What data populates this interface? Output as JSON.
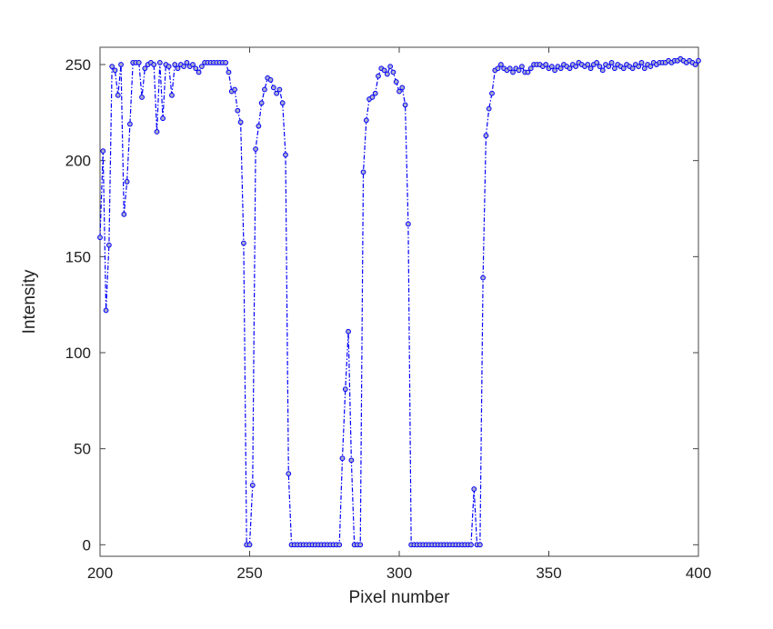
{
  "chart_data": {
    "type": "line",
    "xlabel": "Pixel number",
    "ylabel": "Intensity",
    "x": [
      200,
      201,
      202,
      203,
      204,
      205,
      206,
      207,
      208,
      209,
      210,
      211,
      212,
      213,
      214,
      215,
      216,
      217,
      218,
      219,
      220,
      221,
      222,
      223,
      224,
      225,
      226,
      227,
      228,
      229,
      230,
      231,
      232,
      233,
      234,
      235,
      236,
      237,
      238,
      239,
      240,
      241,
      242,
      243,
      244,
      245,
      246,
      247,
      248,
      249,
      250,
      251,
      252,
      253,
      254,
      255,
      256,
      257,
      258,
      259,
      260,
      261,
      262,
      263,
      264,
      265,
      266,
      267,
      268,
      269,
      270,
      271,
      272,
      273,
      274,
      275,
      276,
      277,
      278,
      279,
      280,
      281,
      282,
      283,
      284,
      285,
      286,
      287,
      288,
      289,
      290,
      291,
      292,
      293,
      294,
      295,
      296,
      297,
      298,
      299,
      300,
      301,
      302,
      303,
      304,
      305,
      306,
      307,
      308,
      309,
      310,
      311,
      312,
      313,
      314,
      315,
      316,
      317,
      318,
      319,
      320,
      321,
      322,
      323,
      324,
      325,
      326,
      327,
      328,
      329,
      330,
      331,
      332,
      333,
      334,
      335,
      336,
      337,
      338,
      339,
      340,
      341,
      342,
      343,
      344,
      345,
      346,
      347,
      348,
      349,
      350,
      351,
      352,
      353,
      354,
      355,
      356,
      357,
      358,
      359,
      360,
      361,
      362,
      363,
      364,
      365,
      366,
      367,
      368,
      369,
      370,
      371,
      372,
      373,
      374,
      375,
      376,
      377,
      378,
      379,
      380,
      381,
      382,
      383,
      384,
      385,
      386,
      387,
      388,
      389,
      390,
      391,
      392,
      393,
      394,
      395,
      396,
      397,
      398,
      399,
      400
    ],
    "series": [
      {
        "color": "#0000ff",
        "values": [
          160,
          205,
          122,
          156,
          249,
          247,
          234,
          250,
          172,
          189,
          219,
          251,
          251,
          251,
          233,
          248,
          250,
          251,
          250,
          215,
          251,
          222,
          250,
          249,
          234,
          250,
          248,
          250,
          249,
          251,
          249,
          250,
          248,
          246,
          249,
          251,
          251,
          251,
          251,
          251,
          251,
          251,
          251,
          246,
          236,
          237,
          226,
          220,
          157,
          0,
          0,
          31,
          206,
          218,
          230,
          237,
          243,
          242,
          238,
          235,
          237,
          230,
          203,
          37,
          0,
          0,
          0,
          0,
          0,
          0,
          0,
          0,
          0,
          0,
          0,
          0,
          0,
          0,
          0,
          0,
          0,
          45,
          81,
          111,
          44,
          0,
          0,
          0,
          194,
          221,
          232,
          233,
          235,
          244,
          248,
          247,
          245,
          249,
          246,
          241,
          236,
          238,
          229,
          167,
          0,
          0,
          0,
          0,
          0,
          0,
          0,
          0,
          0,
          0,
          0,
          0,
          0,
          0,
          0,
          0,
          0,
          0,
          0,
          0,
          0,
          29,
          0,
          0,
          139,
          213,
          227,
          235,
          247,
          248,
          250,
          248,
          247,
          248,
          246,
          248,
          247,
          249,
          246,
          246,
          248,
          250,
          250,
          250,
          249,
          250,
          248,
          249,
          247,
          249,
          248,
          250,
          249,
          248,
          250,
          249,
          251,
          250,
          249,
          250,
          248,
          250,
          251,
          249,
          247,
          250,
          249,
          251,
          248,
          250,
          249,
          248,
          250,
          249,
          248,
          250,
          249,
          251,
          248,
          250,
          249,
          251,
          250,
          251,
          251,
          251,
          252,
          251,
          252,
          252,
          253,
          252,
          251,
          252,
          251,
          250,
          252
        ]
      }
    ],
    "xlim": [
      200,
      400
    ],
    "xticks": [
      200,
      250,
      300,
      350,
      400
    ],
    "ylim": [
      -6,
      259
    ],
    "yticks": [
      0,
      50,
      100,
      150,
      200,
      250
    ]
  }
}
